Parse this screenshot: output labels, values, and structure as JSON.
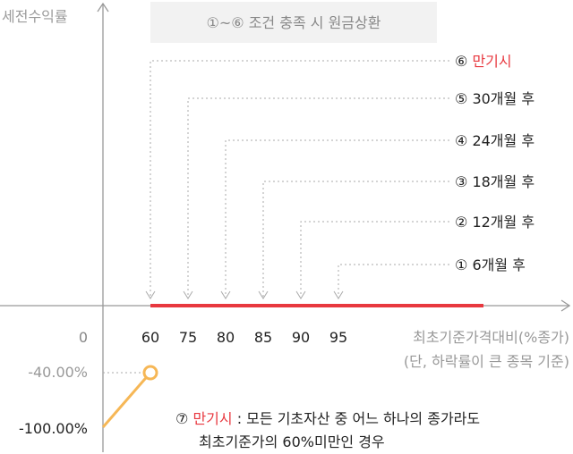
{
  "chart_data": {
    "type": "line",
    "ylabel": "세전수익률",
    "xlabel": "최초기준가격대비(%종가)",
    "xlabel_note": "(단, 하락률이 큰 종목 기준)",
    "origin_label": "0",
    "x_ticks": [
      "60",
      "75",
      "80",
      "85",
      "90",
      "95"
    ],
    "y_ticks": [
      "-40.00%",
      "-100.00%"
    ],
    "banner": "①~⑥ 조건 충족 시 원금상환",
    "redemptions": [
      {
        "label": "⑥ ",
        "text": "만기시",
        "barrier": 60,
        "highlight": true
      },
      {
        "label": "⑤ ",
        "text": "30개월 후",
        "barrier": 75,
        "highlight": false
      },
      {
        "label": "④ ",
        "text": "24개월 후",
        "barrier": 80,
        "highlight": false
      },
      {
        "label": "③ ",
        "text": "18개월 후",
        "barrier": 85,
        "highlight": false
      },
      {
        "label": "② ",
        "text": "12개월 후",
        "barrier": 90,
        "highlight": false
      },
      {
        "label": "① ",
        "text": "6개월 후",
        "barrier": 95,
        "highlight": false
      }
    ],
    "principal_line": {
      "from": 60,
      "to": 100,
      "return_pct": 0
    },
    "loss_segment": {
      "points": [
        [
          0,
          -100
        ],
        [
          60,
          -40
        ]
      ]
    },
    "colors": {
      "axis": "#999999",
      "highlight": "#e8383f",
      "loss": "#f6b756",
      "banner_bg": "#f2f2f2"
    }
  },
  "note": {
    "prefix": "⑦ ",
    "highlight": "만기시",
    "line1_rest": " : 모든 기초자산 중 어느 하나의 종가라도",
    "line2": "최초기준가의 60%미만인 경우"
  }
}
